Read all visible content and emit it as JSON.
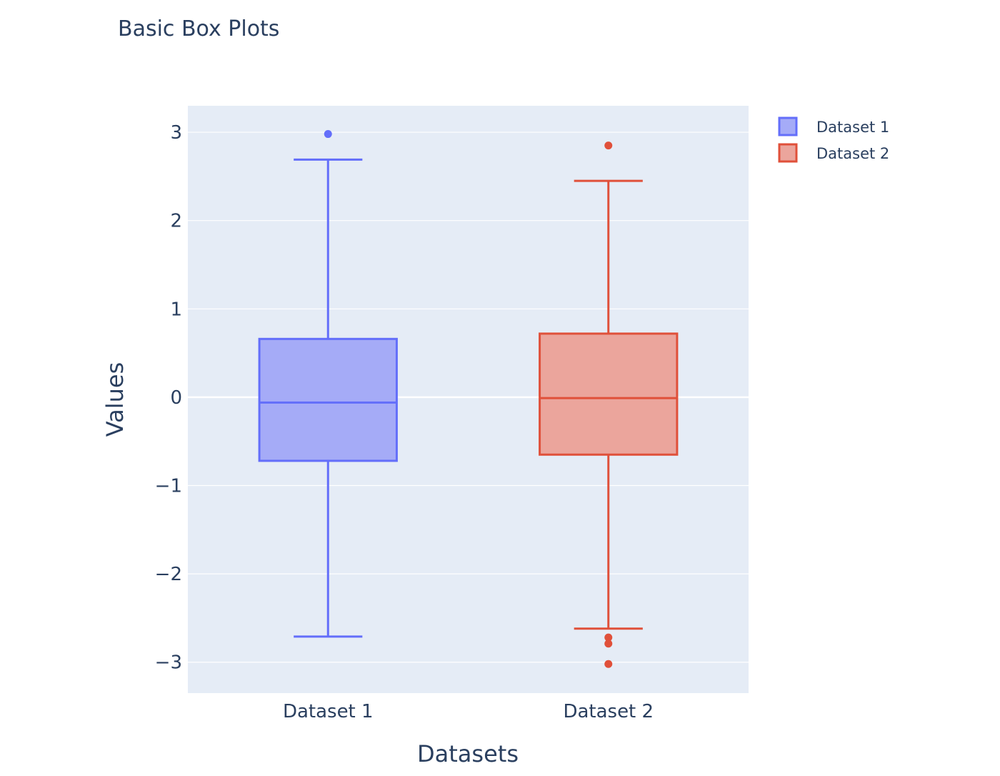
{
  "chart_data": {
    "type": "box",
    "title": "Basic Box Plots",
    "xlabel": "Datasets",
    "ylabel": "Values",
    "categories": [
      "Dataset 1",
      "Dataset 2"
    ],
    "ylim": [
      -3.35,
      3.3
    ],
    "yticks": [
      3,
      2,
      1,
      0,
      -1,
      -2,
      -3
    ],
    "ytick_labels": [
      "3",
      "2",
      "1",
      "0",
      "−1",
      "−2",
      "−3"
    ],
    "grid": true,
    "legend_position": "top-right",
    "plot_bg": "#E5ECF6",
    "series": [
      {
        "name": "Dataset 1",
        "color": "#636EFA",
        "fill": "#A5ABF7",
        "q1": -0.72,
        "median": -0.06,
        "q3": 0.66,
        "lower_whisker": -2.71,
        "upper_whisker": 2.69,
        "outliers": [
          2.98
        ]
      },
      {
        "name": "Dataset 2",
        "color": "#E0503A",
        "fill": "#EBA59C",
        "q1": -0.65,
        "median": -0.01,
        "q3": 0.72,
        "lower_whisker": -2.62,
        "upper_whisker": 2.45,
        "outliers": [
          2.85,
          -2.72,
          -2.79,
          -3.02
        ]
      }
    ]
  }
}
